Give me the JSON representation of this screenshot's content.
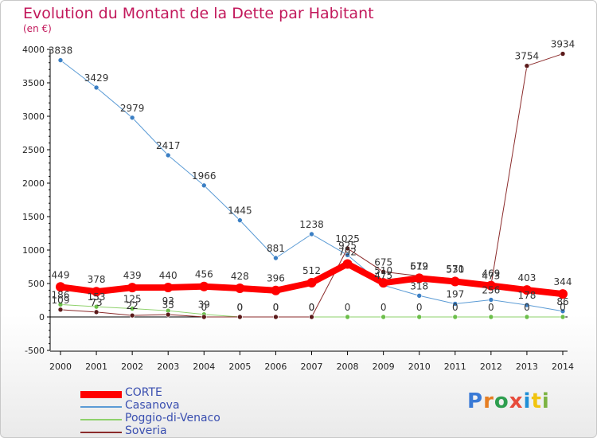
{
  "title": "Evolution du Montant de la Dette par Habitant",
  "subtitle": "(en €)",
  "logo": {
    "text": "Proxiti",
    "colors": [
      "#3a7ad6",
      "#e67e22",
      "#2e9e4f",
      "#e74c3c",
      "#1f8fd6",
      "#f1c40f",
      "#7cb342"
    ]
  },
  "chart_data": {
    "type": "line",
    "title": "Evolution du Montant de la Dette par Habitant",
    "subtitle": "(en €)",
    "x": [
      "2000",
      "2001",
      "2002",
      "2003",
      "2004",
      "2005",
      "2006",
      "2007",
      "2008",
      "2009",
      "2010",
      "2011",
      "2012",
      "2013",
      "2014"
    ],
    "ylim": [
      -500,
      4000
    ],
    "yticks": [
      -500,
      0,
      500,
      1000,
      1500,
      2000,
      2500,
      3000,
      3500,
      4000
    ],
    "legend_position": "bottom-left",
    "series": [
      {
        "name": "Casanova",
        "color": "#5b9bd5",
        "point_color": "#3b7fc4",
        "width": 1,
        "values": [
          3838,
          3429,
          2979,
          2417,
          1966,
          1445,
          881,
          1238,
          925,
          475,
          318,
          197,
          256,
          178,
          86
        ],
        "labels": [
          "3838",
          "3429",
          "2979",
          "2417",
          "1966",
          "1445",
          "881",
          "1238",
          "925",
          "475",
          "318",
          "197",
          "256",
          "178",
          "86"
        ]
      },
      {
        "name": "Poggio-di-Venaco",
        "color": "#8ed16b",
        "point_color": "#6cbf4a",
        "width": 1,
        "values": [
          186,
          153,
          125,
          93,
          39,
          0,
          0,
          0,
          0,
          0,
          0,
          0,
          0,
          0,
          0
        ],
        "labels": [
          "186",
          "153",
          "125",
          "93",
          "39",
          "0",
          "0",
          "0",
          "0",
          "0",
          "0",
          "0",
          "0",
          "0",
          "0"
        ]
      },
      {
        "name": "Soveria",
        "color": "#8b2b2b",
        "point_color": "#5a1a1a",
        "width": 1,
        "values": [
          109,
          73,
          22,
          35,
          0,
          0,
          0,
          0,
          1025,
          675,
          612,
          571,
          473,
          3754,
          3934
        ],
        "labels": [
          "109",
          "73",
          "22",
          "35",
          "0",
          "0",
          "0",
          "0",
          "1025",
          "675",
          "612",
          "571",
          "473",
          "3754",
          "3934"
        ]
      },
      {
        "name": "CORTE",
        "color": "#ff0000",
        "point_color": "#e00000",
        "width": 8,
        "values": [
          449,
          378,
          439,
          440,
          456,
          428,
          396,
          512,
          792,
          510,
          579,
          530,
          469,
          403,
          344
        ],
        "labels": [
          "449",
          "378",
          "439",
          "440",
          "456",
          "428",
          "396",
          "512",
          "792",
          "510",
          "579",
          "530",
          "469",
          "403",
          "344"
        ]
      }
    ],
    "legend_order": [
      "CORTE",
      "Casanova",
      "Poggio-di-Venaco",
      "Soveria"
    ]
  }
}
